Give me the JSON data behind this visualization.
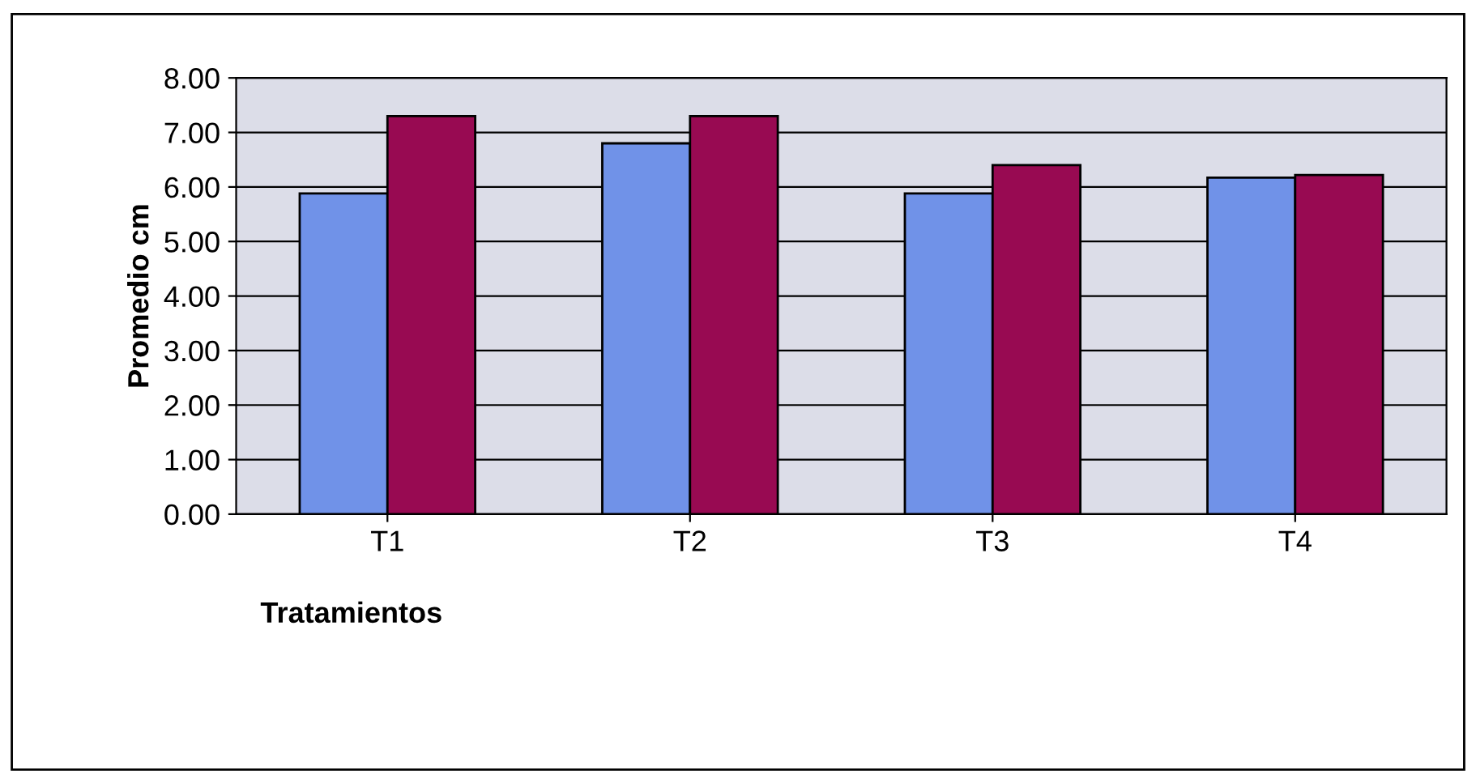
{
  "chart_data": {
    "type": "bar",
    "xlabel": "Tratamientos",
    "ylabel": "Promedio cm",
    "categories": [
      "T1",
      "T2",
      "T3",
      "T4"
    ],
    "series": [
      {
        "color": "#7092e8",
        "values": [
          5.88,
          6.8,
          5.88,
          6.17
        ]
      },
      {
        "color": "#980a52",
        "values": [
          7.3,
          7.3,
          6.4,
          6.22
        ]
      }
    ],
    "ylim": [
      0,
      8
    ],
    "yticks": [
      {
        "value": 0,
        "label": "0.00"
      },
      {
        "value": 1,
        "label": "1.00"
      },
      {
        "value": 2,
        "label": "2.00"
      },
      {
        "value": 3,
        "label": "3.00"
      },
      {
        "value": 4,
        "label": "4.00"
      },
      {
        "value": 5,
        "label": "5.00"
      },
      {
        "value": 6,
        "label": "6.00"
      },
      {
        "value": 7,
        "label": "7.00"
      },
      {
        "value": 8,
        "label": "8.00"
      }
    ],
    "grid": "y",
    "legend": false
  }
}
